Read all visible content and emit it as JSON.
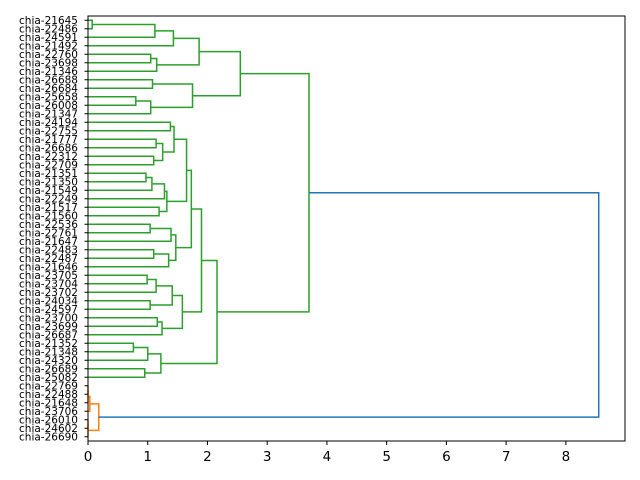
{
  "chart_data": {
    "type": "dendrogram",
    "orientation": "right",
    "title": "",
    "xlabel": "",
    "ylabel": "",
    "xlim": [
      0,
      8.99
    ],
    "xticks": [
      0,
      1,
      2,
      3,
      4,
      5,
      6,
      7,
      8
    ],
    "colors": {
      "green": "#2ca02c",
      "orange": "#ff7f0e",
      "blue": "#1f77b4"
    },
    "leaves": [
      "chia-21645",
      "chia-22486",
      "chia-24591",
      "chia-21492",
      "chia-22760",
      "chia-23698",
      "chia-21346",
      "chia-26688",
      "chia-26684",
      "chia-25658",
      "chia-26008",
      "chia-21347",
      "chia-24194",
      "chia-22755",
      "chia-21777",
      "chia-26686",
      "chia-22312",
      "chia-22709",
      "chia-21351",
      "chia-21350",
      "chia-21549",
      "chia-22249",
      "chia-21517",
      "chia-21560",
      "chia-22536",
      "chia-22761",
      "chia-21647",
      "chia-22483",
      "chia-22487",
      "chia-21646",
      "chia-23705",
      "chia-23704",
      "chia-23702",
      "chia-24034",
      "chia-24597",
      "chia-23700",
      "chia-23699",
      "chia-26687",
      "chia-21352",
      "chia-21348",
      "chia-24320",
      "chia-26689",
      "chia-25082",
      "chia-22769",
      "chia-22488",
      "chia-21648",
      "chia-23706",
      "chia-26010",
      "chia-24602",
      "chia-26690"
    ],
    "links_format": "[leaf_pos_a, leaf_pos_b, dist_a, dist_b, merge_dist, color]",
    "links": [
      [
        0,
        1,
        0,
        0,
        0.07,
        "green"
      ],
      [
        0.5,
        2,
        0.07,
        0,
        1.12,
        "green"
      ],
      [
        1.25,
        3,
        1.12,
        0,
        1.43,
        "green"
      ],
      [
        4,
        5,
        0,
        0,
        1.05,
        "green"
      ],
      [
        4.5,
        6,
        1.05,
        0,
        1.15,
        "green"
      ],
      [
        2.125,
        5.25,
        1.43,
        1.15,
        1.86,
        "green"
      ],
      [
        7,
        8,
        0,
        0,
        1.08,
        "green"
      ],
      [
        9,
        10,
        0,
        0,
        0.8,
        "green"
      ],
      [
        9.5,
        11,
        0.8,
        0,
        1.05,
        "green"
      ],
      [
        7.5,
        10.25,
        1.08,
        1.05,
        1.75,
        "green"
      ],
      [
        3.6875,
        8.875,
        1.86,
        1.75,
        2.55,
        "green"
      ],
      [
        12,
        13,
        0,
        0,
        1.38,
        "green"
      ],
      [
        14,
        15,
        0,
        0,
        1.14,
        "green"
      ],
      [
        16,
        17,
        0,
        0,
        1.1,
        "green"
      ],
      [
        14.5,
        16.5,
        1.14,
        1.1,
        1.25,
        "green"
      ],
      [
        12.5,
        15.5,
        1.38,
        1.25,
        1.44,
        "green"
      ],
      [
        18,
        19,
        0,
        0,
        0.97,
        "green"
      ],
      [
        18.5,
        20,
        0.97,
        0,
        1.07,
        "green"
      ],
      [
        19.25,
        21,
        1.07,
        0,
        1.28,
        "green"
      ],
      [
        22,
        23,
        0,
        0,
        1.19,
        "green"
      ],
      [
        20.125,
        22.5,
        1.28,
        1.19,
        1.32,
        "green"
      ],
      [
        14,
        21.3125,
        1.44,
        1.32,
        1.65,
        "green"
      ],
      [
        24,
        25,
        0,
        0,
        1.04,
        "green"
      ],
      [
        24.5,
        26,
        1.04,
        0,
        1.39,
        "green"
      ],
      [
        27,
        28,
        0,
        0,
        1.1,
        "green"
      ],
      [
        27.5,
        29,
        1.1,
        0,
        1.35,
        "green"
      ],
      [
        25.25,
        28.25,
        1.39,
        1.35,
        1.47,
        "green"
      ],
      [
        17.656,
        26.75,
        1.65,
        1.47,
        1.73,
        "green"
      ],
      [
        30,
        31,
        0,
        0,
        0.99,
        "green"
      ],
      [
        30.5,
        32,
        0.99,
        0,
        1.14,
        "green"
      ],
      [
        33,
        34,
        0,
        0,
        1.04,
        "green"
      ],
      [
        31.25,
        33.5,
        1.14,
        1.04,
        1.41,
        "green"
      ],
      [
        35,
        36,
        0,
        0,
        1.16,
        "green"
      ],
      [
        35.5,
        37,
        1.16,
        0,
        1.24,
        "green"
      ],
      [
        32.375,
        36.25,
        1.41,
        1.24,
        1.58,
        "green"
      ],
      [
        22.203,
        34.3125,
        1.73,
        1.58,
        1.9,
        "green"
      ],
      [
        38,
        39,
        0,
        0,
        0.76,
        "green"
      ],
      [
        38.5,
        40,
        0.76,
        0,
        1.0,
        "green"
      ],
      [
        41,
        42,
        0,
        0,
        0.95,
        "green"
      ],
      [
        39.25,
        41.5,
        1.0,
        0.95,
        1.22,
        "green"
      ],
      [
        28.258,
        40.375,
        1.9,
        1.22,
        2.16,
        "green"
      ],
      [
        6.281,
        34.316,
        2.55,
        2.16,
        3.7,
        "green"
      ],
      [
        43,
        44,
        0,
        0,
        0,
        "orange"
      ],
      [
        43.5,
        45,
        0,
        0,
        0,
        "orange"
      ],
      [
        44.25,
        46,
        0,
        0,
        0.03,
        "orange"
      ],
      [
        47,
        48,
        0,
        0,
        0,
        "orange"
      ],
      [
        47.5,
        49,
        0,
        0,
        0,
        "orange"
      ],
      [
        45.125,
        48.25,
        0.03,
        0,
        0.18,
        "orange"
      ],
      [
        20.3,
        46.69,
        3.7,
        0.18,
        8.55,
        "blue"
      ]
    ]
  }
}
